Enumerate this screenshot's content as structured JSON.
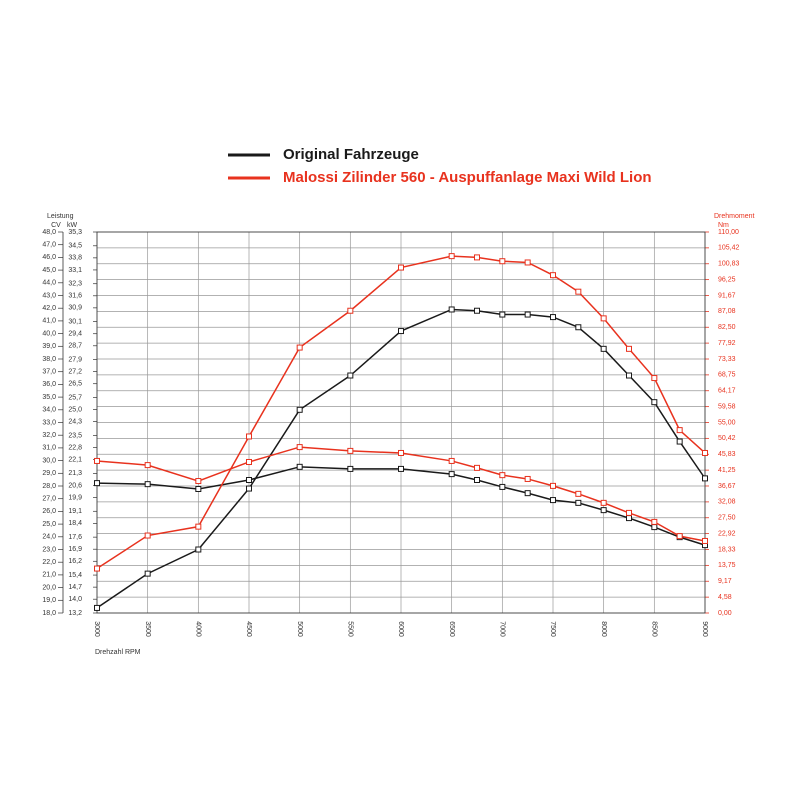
{
  "chart_data": {
    "type": "line",
    "legend": "top",
    "grid": true,
    "ylabel": "Leistung",
    "ylabel_unit": "CV",
    "ykw_unit": "kW",
    "y2label": "Drehmoment",
    "y2label_unit": "Nm",
    "xlabel": "Drehzahl RPM",
    "x": [
      3000,
      3500,
      4000,
      4500,
      5000,
      5500,
      6000,
      6500,
      6750,
      7000,
      7250,
      7500,
      7750,
      8000,
      8250,
      8500,
      8750,
      9000
    ],
    "xlim": [
      3000,
      9000
    ],
    "xticks": [
      3000,
      3500,
      4000,
      4500,
      5000,
      5500,
      6000,
      6500,
      7000,
      7500,
      8000,
      8500,
      9000
    ],
    "ylim": [
      18,
      48
    ],
    "yticks": [
      {
        "value": 48,
        "label": "48,0"
      },
      {
        "value": 47,
        "label": "47,0"
      },
      {
        "value": 46,
        "label": "46,0"
      },
      {
        "value": 45,
        "label": "45,0"
      },
      {
        "value": 44,
        "label": "44,0"
      },
      {
        "value": 43,
        "label": "43,0"
      },
      {
        "value": 42,
        "label": "42,0"
      },
      {
        "value": 41,
        "label": "41,0"
      },
      {
        "value": 40,
        "label": "40,0"
      },
      {
        "value": 39,
        "label": "39,0"
      },
      {
        "value": 38,
        "label": "38,0"
      },
      {
        "value": 37,
        "label": "37,0"
      },
      {
        "value": 36,
        "label": "36,0"
      },
      {
        "value": 35,
        "label": "35,0"
      },
      {
        "value": 34,
        "label": "34,0"
      },
      {
        "value": 33,
        "label": "33,0"
      },
      {
        "value": 32,
        "label": "32,0"
      },
      {
        "value": 31,
        "label": "31,0"
      },
      {
        "value": 30,
        "label": "30,0"
      },
      {
        "value": 29,
        "label": "29,0"
      },
      {
        "value": 28,
        "label": "28,0"
      },
      {
        "value": 27,
        "label": "27,0"
      },
      {
        "value": 26,
        "label": "26,0"
      },
      {
        "value": 25,
        "label": "25,0"
      },
      {
        "value": 24,
        "label": "24,0"
      },
      {
        "value": 23,
        "label": "23,0"
      },
      {
        "value": 22,
        "label": "22,0"
      },
      {
        "value": 21,
        "label": "21,0"
      },
      {
        "value": 20,
        "label": "20,0"
      },
      {
        "value": 19,
        "label": "19,0"
      },
      {
        "value": 18,
        "label": "18,0"
      }
    ],
    "ykwlim": [
      13.2,
      35.3
    ],
    "ykwticks": [
      {
        "value": 35.3,
        "label": "35,3"
      },
      {
        "value": 34.5,
        "label": "34,5"
      },
      {
        "value": 33.8,
        "label": "33,8"
      },
      {
        "value": 33.1,
        "label": "33,1"
      },
      {
        "value": 32.3,
        "label": "32,3"
      },
      {
        "value": 31.6,
        "label": "31,6"
      },
      {
        "value": 30.9,
        "label": "30,9"
      },
      {
        "value": 30.1,
        "label": "30,1"
      },
      {
        "value": 29.4,
        "label": "29,4"
      },
      {
        "value": 28.7,
        "label": "28,7"
      },
      {
        "value": 27.9,
        "label": "27,9"
      },
      {
        "value": 27.2,
        "label": "27,2"
      },
      {
        "value": 26.5,
        "label": "26,5"
      },
      {
        "value": 25.7,
        "label": "25,7"
      },
      {
        "value": 25.0,
        "label": "25,0"
      },
      {
        "value": 24.3,
        "label": "24,3"
      },
      {
        "value": 23.5,
        "label": "23,5"
      },
      {
        "value": 22.8,
        "label": "22,8"
      },
      {
        "value": 22.1,
        "label": "22,1"
      },
      {
        "value": 21.3,
        "label": "21,3"
      },
      {
        "value": 20.6,
        "label": "20,6"
      },
      {
        "value": 19.9,
        "label": "19,9"
      },
      {
        "value": 19.1,
        "label": "19,1"
      },
      {
        "value": 18.4,
        "label": "18,4"
      },
      {
        "value": 17.6,
        "label": "17,6"
      },
      {
        "value": 16.9,
        "label": "16,9"
      },
      {
        "value": 16.2,
        "label": "16,2"
      },
      {
        "value": 15.4,
        "label": "15,4"
      },
      {
        "value": 14.7,
        "label": "14,7"
      },
      {
        "value": 14.0,
        "label": "14,0"
      },
      {
        "value": 13.2,
        "label": "13,2"
      }
    ],
    "y2lim": [
      0,
      110
    ],
    "y2ticks": [
      {
        "value": 110,
        "label": "110,00"
      },
      {
        "value": 105.42,
        "label": "105,42"
      },
      {
        "value": 100.83,
        "label": "100,83"
      },
      {
        "value": 96.25,
        "label": "96,25"
      },
      {
        "value": 91.67,
        "label": "91,67"
      },
      {
        "value": 87.08,
        "label": "87,08"
      },
      {
        "value": 82.5,
        "label": "82,50"
      },
      {
        "value": 77.92,
        "label": "77,92"
      },
      {
        "value": 73.33,
        "label": "73,33"
      },
      {
        "value": 68.75,
        "label": "68,75"
      },
      {
        "value": 64.17,
        "label": "64,17"
      },
      {
        "value": 59.58,
        "label": "59,58"
      },
      {
        "value": 55,
        "label": "55,00"
      },
      {
        "value": 50.42,
        "label": "50,42"
      },
      {
        "value": 45.83,
        "label": "45,83"
      },
      {
        "value": 41.25,
        "label": "41,25"
      },
      {
        "value": 36.67,
        "label": "36,67"
      },
      {
        "value": 32.08,
        "label": "32,08"
      },
      {
        "value": 27.5,
        "label": "27,50"
      },
      {
        "value": 22.92,
        "label": "22,92"
      },
      {
        "value": 18.33,
        "label": "18,33"
      },
      {
        "value": 13.75,
        "label": "13,75"
      },
      {
        "value": 9.17,
        "label": "9,17"
      },
      {
        "value": 4.58,
        "label": "4,58"
      },
      {
        "value": 0,
        "label": "0,00"
      }
    ],
    "y2color": "#e8321e",
    "series": [
      {
        "name": "Original Fahrzeuge",
        "color": "#1a1a1a",
        "power": [
          18.4,
          21.1,
          23.0,
          27.8,
          34.0,
          36.7,
          40.2,
          41.9,
          41.8,
          41.5,
          41.5,
          41.3,
          40.5,
          38.8,
          36.7,
          34.6,
          31.5,
          28.6
        ],
        "torque": [
          37.5,
          37.2,
          35.8,
          38.4,
          42.2,
          41.6,
          41.6,
          40.1,
          38.4,
          36.4,
          34.6,
          32.6,
          31.8,
          29.7,
          27.4,
          24.8,
          21.9,
          19.6
        ]
      },
      {
        "name": "Malossi Zilinder 560 - Auspuffanlage Maxi Wild Lion",
        "color": "#e8321e",
        "power": [
          21.5,
          24.1,
          24.8,
          31.9,
          38.9,
          41.8,
          45.2,
          46.1,
          46.0,
          45.7,
          45.6,
          44.6,
          43.3,
          41.2,
          38.8,
          36.5,
          32.4,
          30.6
        ],
        "torque": [
          43.9,
          42.7,
          38.1,
          43.6,
          47.9,
          46.8,
          46.2,
          43.9,
          41.9,
          39.8,
          38.7,
          36.7,
          34.4,
          31.8,
          28.9,
          26.3,
          22.2,
          20.8
        ]
      }
    ]
  }
}
